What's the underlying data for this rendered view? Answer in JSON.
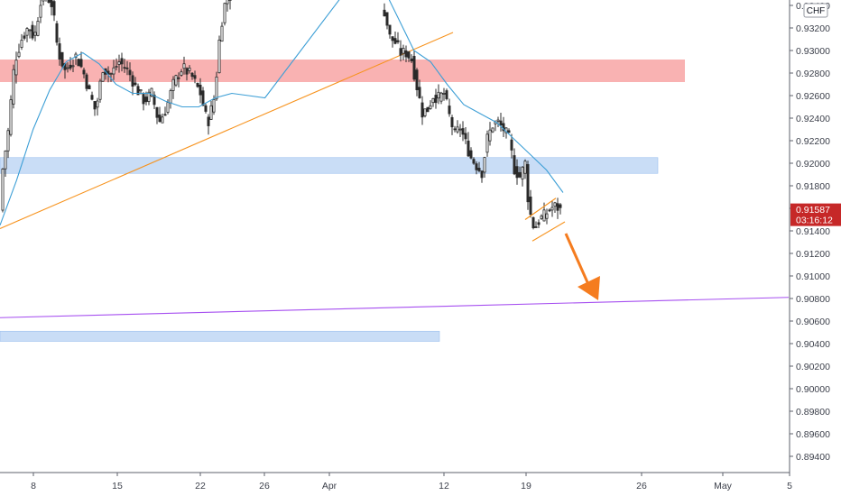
{
  "chart_data": {
    "type": "candlestick",
    "currency_label": "CHF",
    "y_axis": {
      "range": [
        0.8928,
        0.9352
      ],
      "ticks": [
        "0.93400",
        "0.93200",
        "0.93000",
        "0.92800",
        "0.92600",
        "0.92400",
        "0.92200",
        "0.92000",
        "0.91800",
        "0.91600",
        "0.91400",
        "0.91200",
        "0.91000",
        "0.90800",
        "0.90600",
        "0.90400",
        "0.90200",
        "0.90000",
        "0.89800",
        "0.89600",
        "0.89400"
      ]
    },
    "x_axis": {
      "ticks": [
        "8",
        "15",
        "22",
        "26",
        "Apr",
        "12",
        "19",
        "26",
        "May",
        "5"
      ]
    },
    "last_price": {
      "value": "0.91587",
      "countdown": "03:16:12",
      "color": "#c62828"
    },
    "colors": {
      "up": "#26a69a",
      "down": "#ef5350",
      "candle": "#2b2b2b",
      "moving_average": "#3d9fd6",
      "trendline": "#f7931e",
      "support_line": "#a64ff0",
      "red_zone": "#f8a5a5",
      "blue_zone": "#c3d9f5",
      "arrow": "#f57c1f"
    },
    "zones": [
      {
        "name": "resistance",
        "color": "red",
        "y_from": 0.9272,
        "y_to": 0.9292
      },
      {
        "name": "support-upper",
        "color": "blue",
        "y_from": 0.9191,
        "y_to": 0.9205
      },
      {
        "name": "support-lower",
        "color": "blue",
        "y_from": 0.9042,
        "y_to": 0.9051
      }
    ],
    "support_line": {
      "y_start": 0.9063,
      "y_end": 0.9081
    },
    "trendline": {
      "y_start": 0.9142,
      "y_end": 0.9316
    },
    "moving_average": [
      0.9145,
      0.9185,
      0.923,
      0.9265,
      0.929,
      0.9298,
      0.9288,
      0.927,
      0.9262,
      0.9262,
      0.9255,
      0.925,
      0.925,
      0.9258,
      0.9262,
      0.926,
      0.9258,
      0.925,
      0.9252,
      0.926,
      0.93,
      0.9355,
      0.9365,
      0.936,
      0.933,
      0.93,
      0.929,
      0.927,
      0.9252,
      0.9244,
      0.9236,
      0.9222,
      0.9208,
      0.9194,
      0.9174
    ]
  }
}
